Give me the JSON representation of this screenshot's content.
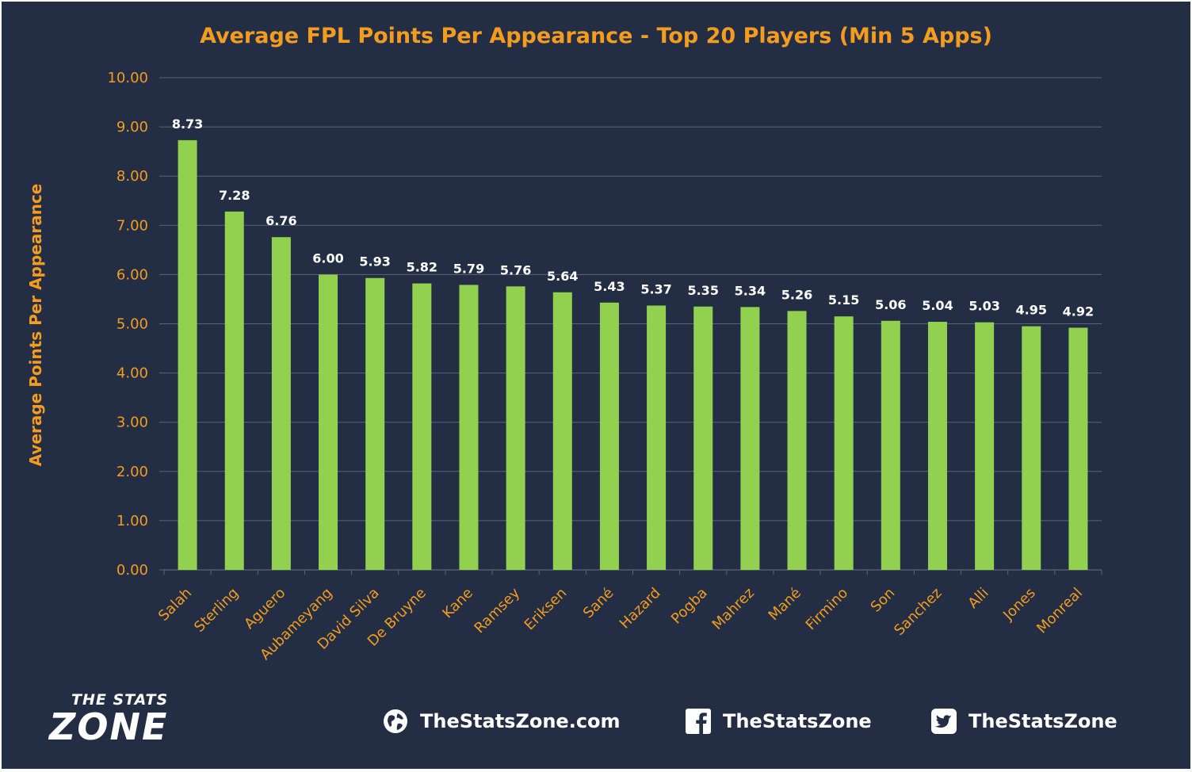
{
  "colors": {
    "background": "#232e45",
    "bar": "#92d050",
    "accent": "#f39c1f",
    "value_labels": "#ffffff",
    "grid": "#5b6478"
  },
  "chart_data": {
    "type": "bar",
    "title": "Average FPL Points Per Appearance - Top 20 Players (Min 5 Apps)",
    "xlabel": "",
    "ylabel": "Average Points Per Appearance",
    "ylim": [
      0,
      10
    ],
    "ytick_step": 1,
    "grid": "horizontal",
    "categories": [
      "Salah",
      "Sterling",
      "Aguero",
      "Aubameyang",
      "David Silva",
      "De Bruyne",
      "Kane",
      "Ramsey",
      "Eriksen",
      "Sané",
      "Hazard",
      "Pogba",
      "Mahrez",
      "Mané",
      "Firmino",
      "Son",
      "Sanchez",
      "Alli",
      "Jones",
      "Monreal"
    ],
    "values": [
      8.73,
      7.28,
      6.76,
      6.0,
      5.93,
      5.82,
      5.79,
      5.76,
      5.64,
      5.43,
      5.37,
      5.35,
      5.34,
      5.26,
      5.15,
      5.06,
      5.04,
      5.03,
      4.95,
      4.92
    ],
    "yticks": [
      "0.00",
      "1.00",
      "2.00",
      "3.00",
      "4.00",
      "5.00",
      "6.00",
      "7.00",
      "8.00",
      "9.00",
      "10.00"
    ],
    "value_labels": [
      "8.73",
      "7.28",
      "6.76",
      "6.00",
      "5.93",
      "5.82",
      "5.79",
      "5.76",
      "5.64",
      "5.43",
      "5.37",
      "5.35",
      "5.34",
      "5.26",
      "5.15",
      "5.06",
      "5.04",
      "5.03",
      "4.95",
      "4.92"
    ]
  },
  "footer": {
    "logo_line1": "THE STATS",
    "logo_line2": "ZONE",
    "website": {
      "icon": "globe-icon",
      "label": "TheStatsZone.com"
    },
    "facebook": {
      "icon": "facebook-icon",
      "label": "TheStatsZone"
    },
    "twitter": {
      "icon": "twitter-icon",
      "label": "TheStatsZone"
    }
  }
}
